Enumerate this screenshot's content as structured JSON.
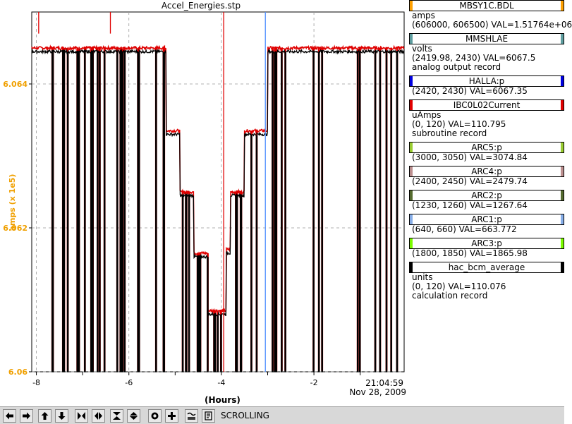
{
  "window": {
    "title": "Accel_Energies.stp"
  },
  "plot": {
    "y_axis_label": "amps (x 1e5)",
    "x_axis_label": "(Hours)",
    "time_label": "21:04:59",
    "date_label": "Nov 28, 2009"
  },
  "chart_data": {
    "type": "line",
    "title": "Accel_Energies.stp",
    "xlabel": "(Hours)",
    "ylabel": "amps (x 1e5)",
    "xlim": [
      -8.1,
      -0.05
    ],
    "ylim": [
      6.06,
      6.065
    ],
    "x_ticks": [
      -8,
      -6,
      -4,
      -2
    ],
    "x_tick_labels": [
      "-8",
      "-6",
      "-4",
      "-2"
    ],
    "y_ticks": [
      6.06,
      6.062,
      6.064
    ],
    "y_tick_labels": [
      "6.06",
      "6.062",
      "6.064"
    ],
    "grid": true,
    "series": [
      {
        "name": "MBSY1C.BDL",
        "color": "#e00000",
        "x": [
          -8.1,
          -5.3,
          -5.2,
          -4.9,
          -4.6,
          -4.3,
          -4.0,
          -3.9,
          -3.8,
          -3.5,
          -3.0,
          -0.05
        ],
        "values": [
          6.0645,
          6.0645,
          6.06335,
          6.0625,
          6.06165,
          6.06085,
          6.06085,
          6.0617,
          6.0625,
          6.06335,
          6.0645,
          6.0645
        ]
      },
      {
        "name": "hac_bcm_average",
        "color": "#000000",
        "x": [
          -8.1,
          -5.3,
          -5.2,
          -4.9,
          -4.6,
          -4.3,
          -4.0,
          -3.9,
          -3.8,
          -3.5,
          -3.0,
          -0.05
        ],
        "values": [
          6.06445,
          6.06445,
          6.0633,
          6.06245,
          6.0616,
          6.0608,
          6.0608,
          6.06165,
          6.06245,
          6.0633,
          6.06445,
          6.06445
        ]
      }
    ],
    "markers": [
      {
        "name": "MBSY1C.BDL",
        "x": -7.95,
        "color": "#e00000"
      },
      {
        "name": "MBSY1C.BDL",
        "x": -6.4,
        "color": "#e00000"
      },
      {
        "name": "IBC0L02Current",
        "x": -3.95,
        "color": "#e00000"
      },
      {
        "name": "HALLA:p",
        "x": -3.05,
        "color": "#4f8fff"
      }
    ]
  },
  "legend": [
    {
      "name": "MBSY1C.BDL",
      "color": "#ffa000",
      "lines": [
        "amps",
        "(606000, 606500)  VAL=1.51764e+06"
      ]
    },
    {
      "name": "MMSHLAE",
      "color": "#5f9ea0",
      "lines": [
        "volts",
        "(2419.98, 2430) VAL=6067.5",
        "analog output record"
      ]
    },
    {
      "name": "HALLA:p",
      "color": "#0000e0",
      "lines": [
        "(2420, 2430) VAL=6067.35"
      ]
    },
    {
      "name": "IBC0L02Current",
      "color": "#e00000",
      "lines": [
        "uAmps",
        "(0, 120) VAL=110.795",
        "subroutine record"
      ]
    },
    {
      "name": "ARC5:p",
      "color": "#9acd32",
      "lines": [
        "(3000, 3050) VAL=3074.84"
      ]
    },
    {
      "name": "ARC4:p",
      "color": "#bc8f8f",
      "lines": [
        "(2400, 2450) VAL=2479.74"
      ]
    },
    {
      "name": "ARC2:p",
      "color": "#556b2f",
      "lines": [
        "(1230, 1260) VAL=1267.64"
      ]
    },
    {
      "name": "ARC1:p",
      "color": "#87aee8",
      "lines": [
        "(640, 660) VAL=663.772"
      ]
    },
    {
      "name": "ARC3:p",
      "color": "#7cfc00",
      "lines": [
        "(1800, 1850) VAL=1865.98"
      ]
    },
    {
      "name": "hac_bcm_average",
      "color": "#000000",
      "lines": [
        "units",
        "(0, 120) VAL=110.076",
        "calculation record"
      ]
    }
  ],
  "toolbar": {
    "status": "SCROLLING",
    "buttons": [
      {
        "name": "scroll-left",
        "icon": "arrow-left-icon"
      },
      {
        "name": "scroll-right",
        "icon": "arrow-right-icon"
      },
      {
        "name": "scroll-up",
        "icon": "arrow-up-icon"
      },
      {
        "name": "scroll-down",
        "icon": "arrow-down-icon"
      },
      {
        "name": "zoom-in-x",
        "icon": "zoom-in-x-icon"
      },
      {
        "name": "zoom-out-x",
        "icon": "zoom-out-x-icon"
      },
      {
        "name": "zoom-in-y",
        "icon": "zoom-in-y-icon"
      },
      {
        "name": "zoom-out-y",
        "icon": "zoom-out-y-icon"
      },
      {
        "name": "auto-scale",
        "icon": "auto-scale-icon"
      },
      {
        "name": "crosshair",
        "icon": "crosshair-icon"
      },
      {
        "name": "axis-toggle",
        "icon": "axis-toggle-icon"
      },
      {
        "name": "time-mode",
        "icon": "time-mode-icon"
      }
    ]
  }
}
